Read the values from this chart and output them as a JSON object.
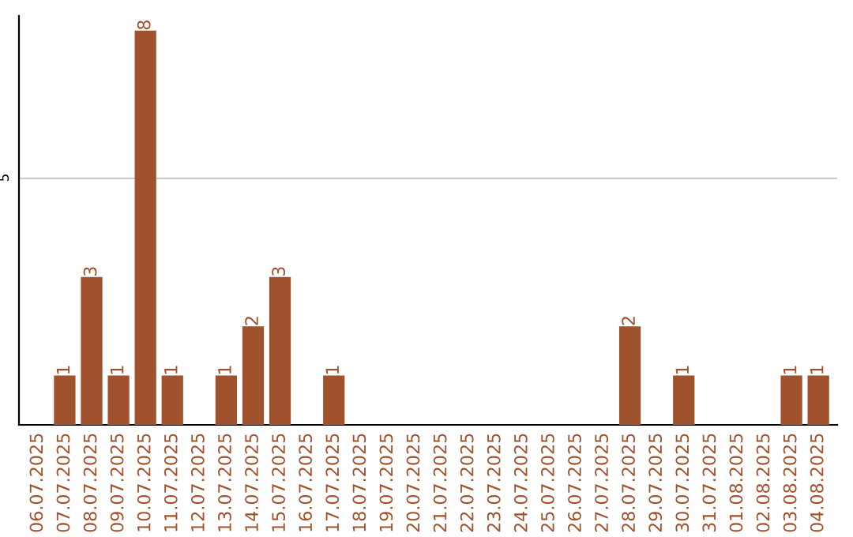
{
  "chart_data": {
    "type": "bar",
    "categories": [
      "06.07.2025",
      "07.07.2025",
      "08.07.2025",
      "09.07.2025",
      "10.07.2025",
      "11.07.2025",
      "12.07.2025",
      "13.07.2025",
      "14.07.2025",
      "15.07.2025",
      "16.07.2025",
      "17.07.2025",
      "18.07.2025",
      "19.07.2025",
      "20.07.2025",
      "21.07.2025",
      "22.07.2025",
      "23.07.2025",
      "24.07.2025",
      "25.07.2025",
      "26.07.2025",
      "27.07.2025",
      "28.07.2025",
      "29.07.2025",
      "30.07.2025",
      "31.07.2025",
      "01.08.2025",
      "02.08.2025",
      "03.08.2025",
      "04.08.2025"
    ],
    "values": [
      0,
      1,
      3,
      1,
      8,
      1,
      0,
      1,
      2,
      3,
      0,
      1,
      0,
      0,
      0,
      0,
      0,
      0,
      0,
      0,
      0,
      0,
      2,
      0,
      1,
      0,
      0,
      0,
      1,
      1
    ],
    "value_labels": [
      null,
      "1",
      "3",
      "1",
      "8",
      "1",
      null,
      "1",
      "2",
      "3",
      null,
      "1",
      null,
      null,
      null,
      null,
      null,
      null,
      null,
      null,
      null,
      null,
      "2",
      null,
      "1",
      null,
      null,
      null,
      "1",
      "1"
    ],
    "color": "#a0522d",
    "ylim": [
      0,
      8.3
    ],
    "yticks": [
      5
    ],
    "grid": "y"
  }
}
